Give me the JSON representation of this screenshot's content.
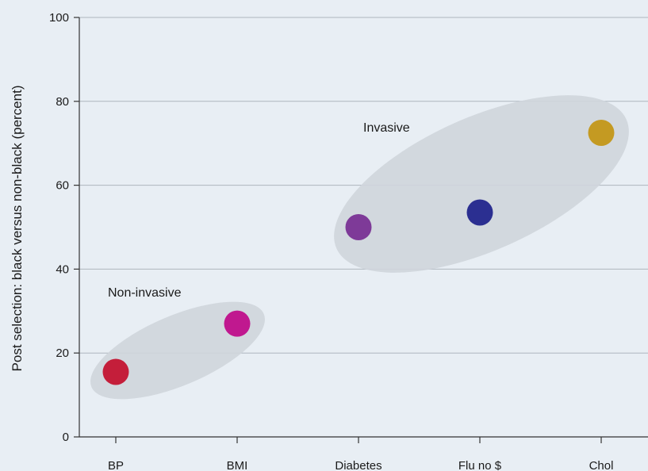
{
  "chart_data": {
    "type": "scatter",
    "title": "",
    "xlabel": "",
    "ylabel": "Post selection: black versus non-black (percent)",
    "categories": [
      "BP",
      "BMI",
      "Diabetes",
      "Flu no $",
      "Chol"
    ],
    "values": [
      15.5,
      27,
      50,
      53.5,
      72.5
    ],
    "point_colors": [
      "#c41e3a",
      "#c0188f",
      "#7e3a98",
      "#2b2f91",
      "#c49a22"
    ],
    "ylim": [
      0,
      100
    ],
    "yticks": [
      0,
      20,
      40,
      60,
      80,
      100
    ],
    "grid": "horizontal",
    "groups": [
      {
        "label": "Non-invasive",
        "members": [
          "BP",
          "BMI"
        ]
      },
      {
        "label": "Invasive",
        "members": [
          "Diabetes",
          "Flu no $",
          "Chol"
        ]
      }
    ]
  },
  "colors": {
    "background": "#e8eef4",
    "grid": "#aeb6be",
    "axis": "#333333",
    "group_ellipse": "#cfd5dc"
  }
}
